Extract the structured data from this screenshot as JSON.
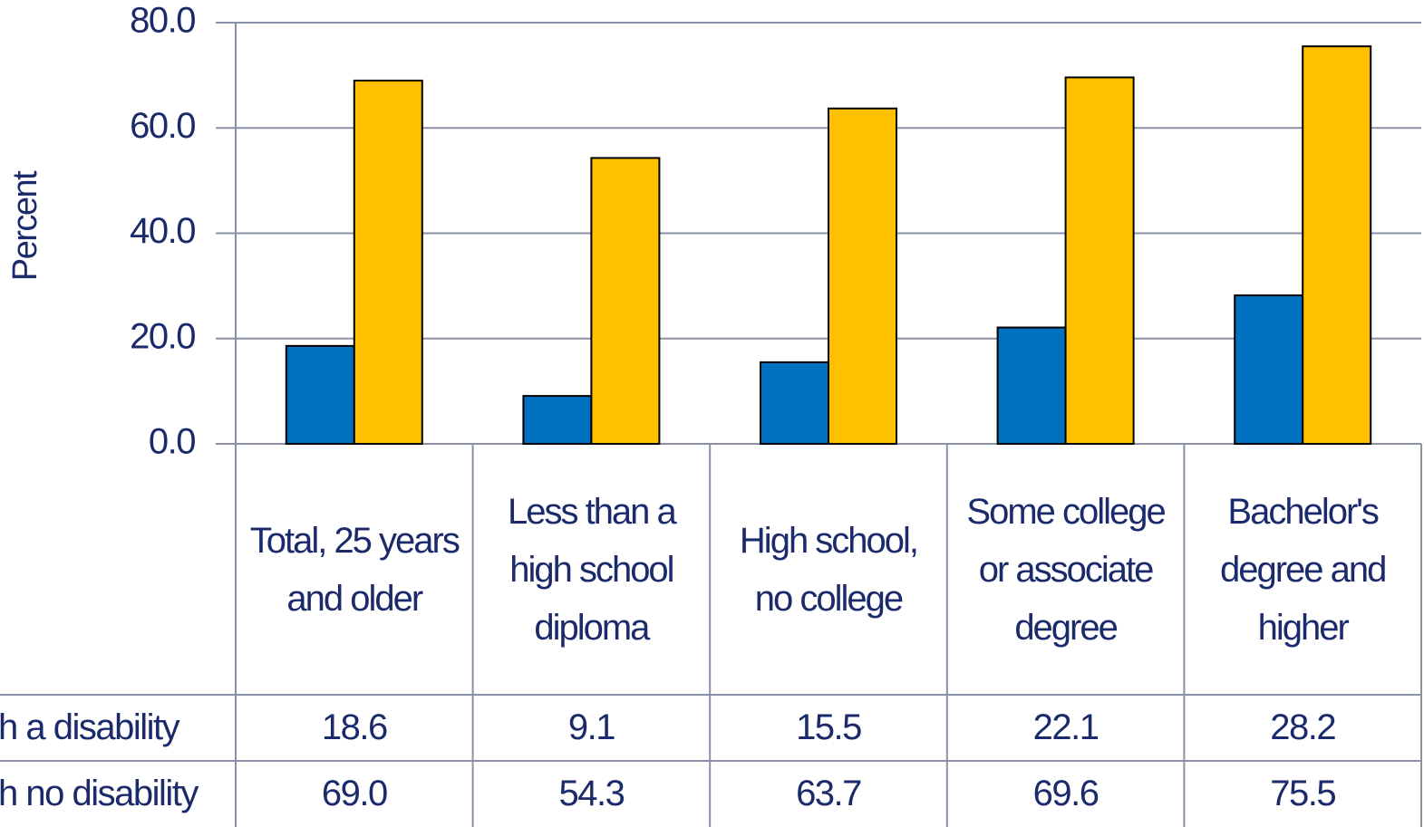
{
  "chart_data": {
    "type": "bar",
    "y_label": "Percent",
    "categories": [
      "Total, 25 years and older",
      "Less than a high school diploma",
      "High school, no college",
      "Some college or associate degree",
      "Bachelor's degree and higher"
    ],
    "series": [
      {
        "name": "h a disability",
        "color": "#0070c0",
        "values": [
          18.6,
          9.1,
          15.5,
          22.1,
          28.2
        ],
        "value_labels": [
          "18.6",
          "9.1",
          "15.5",
          "22.1",
          "28.2"
        ]
      },
      {
        "name": "h no disability",
        "color": "#ffc000",
        "values": [
          69.0,
          54.3,
          63.7,
          69.6,
          75.5
        ],
        "value_labels": [
          "69.0",
          "54.3",
          "63.7",
          "69.6",
          "75.5"
        ]
      }
    ],
    "ylim": [
      0,
      80
    ],
    "yticks": [
      {
        "value": 0,
        "label": "0.0"
      },
      {
        "value": 20,
        "label": "20.0"
      },
      {
        "value": 40,
        "label": "40.0"
      },
      {
        "value": 60,
        "label": "60.0"
      },
      {
        "value": 80,
        "label": "80.0"
      }
    ],
    "grid": true
  }
}
